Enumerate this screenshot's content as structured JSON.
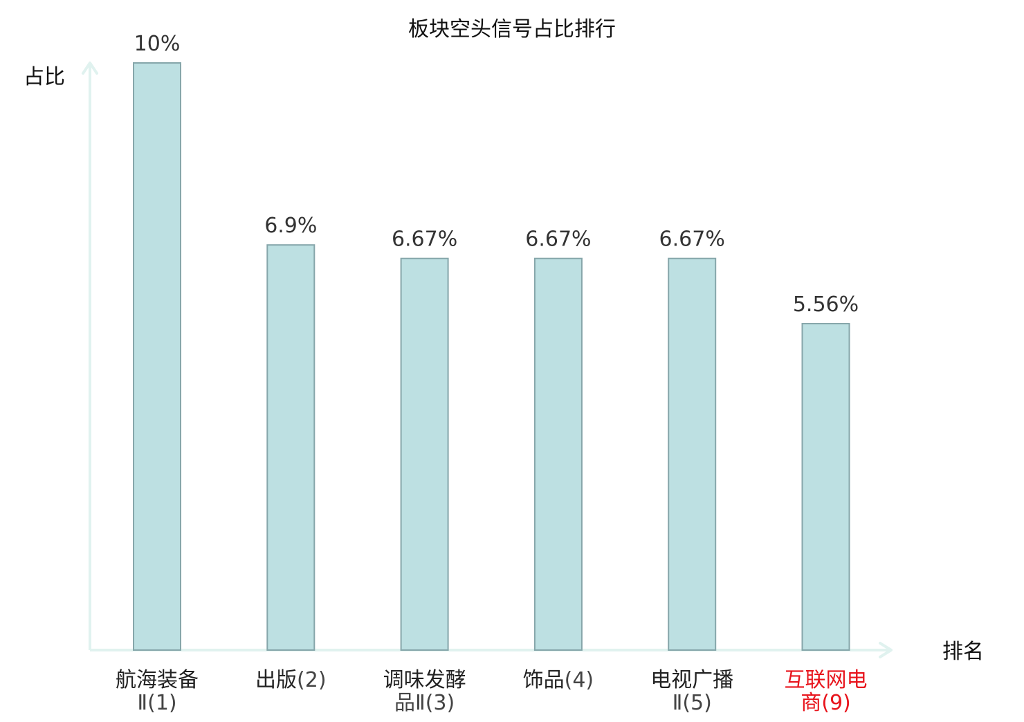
{
  "chart_data": {
    "type": "bar",
    "title": "板块空头信号占比排行",
    "ylabel": "占比",
    "xlabel": "排名",
    "ylim": [
      0,
      10
    ],
    "grid": false,
    "categories": [
      {
        "name": "航海装备",
        "rank": "Ⅱ(1)",
        "highlight": false
      },
      {
        "name": "出版",
        "rank": "(2)",
        "highlight": false
      },
      {
        "name": "调味发酵",
        "rank": "品Ⅱ(3)",
        "highlight": false
      },
      {
        "name": "饰品",
        "rank": "(4)",
        "highlight": false
      },
      {
        "name": "电视广播",
        "rank": "Ⅱ(5)",
        "highlight": false
      },
      {
        "name": "互联网电",
        "rank": "商(9)",
        "highlight": true
      }
    ],
    "values": [
      10,
      6.9,
      6.67,
      6.67,
      6.67,
      5.56
    ],
    "value_labels": [
      "10%",
      "6.9%",
      "6.67%",
      "6.67%",
      "6.67%",
      "5.56%"
    ],
    "colors": {
      "bar_fill": "#bde0e2",
      "bar_stroke": "#86a6aa",
      "axis": "#e0f2ef",
      "text": "#222222",
      "value_label": "#333333",
      "rank_text": "#444444",
      "highlight": "#e8141c"
    }
  }
}
